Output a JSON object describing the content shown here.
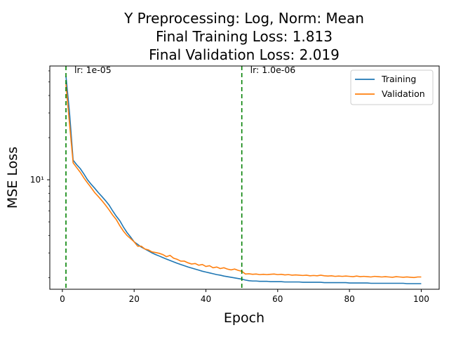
{
  "chart_data": {
    "type": "line",
    "title": [
      "Y Preprocessing: Log, Norm: Mean",
      "Final Training Loss: 1.813",
      "Final Validation Loss: 2.019"
    ],
    "xlabel": "Epoch",
    "ylabel": "MSE Loss",
    "yscale": "log",
    "xlim": [
      -3.5,
      105
    ],
    "ylim": [
      1.65,
      65
    ],
    "xticks": [
      0,
      20,
      40,
      60,
      80,
      100
    ],
    "xtick_labels": [
      "0",
      "20",
      "40",
      "60",
      "80",
      "100"
    ],
    "yticks_major": [
      10
    ],
    "ytick_labels": [
      "10¹"
    ],
    "grid": false,
    "legend": "top-right",
    "vlines": [
      {
        "x": 1,
        "color": "#008000",
        "style": "dashed",
        "label": "lr: 1e-05"
      },
      {
        "x": 50,
        "color": "#008000",
        "style": "dashed",
        "label": "lr: 1.0e-06"
      }
    ],
    "series": [
      {
        "name": "Training",
        "color": "#1f77b4",
        "x": [
          1,
          2,
          3,
          4,
          5,
          6,
          7,
          8,
          9,
          10,
          11,
          12,
          13,
          14,
          15,
          16,
          17,
          18,
          19,
          20,
          21,
          22,
          23,
          24,
          25,
          26,
          27,
          28,
          29,
          30,
          31,
          32,
          33,
          34,
          35,
          36,
          37,
          38,
          39,
          40,
          41,
          42,
          43,
          44,
          45,
          46,
          47,
          48,
          49,
          50,
          51,
          52,
          53,
          54,
          55,
          56,
          57,
          58,
          59,
          60,
          61,
          62,
          63,
          64,
          65,
          66,
          67,
          68,
          69,
          70,
          71,
          72,
          73,
          74,
          75,
          76,
          77,
          78,
          79,
          80,
          81,
          82,
          83,
          84,
          85,
          86,
          87,
          88,
          89,
          90,
          91,
          92,
          93,
          94,
          95,
          96,
          97,
          98,
          99,
          100
        ],
        "y": [
          55,
          30,
          13.8,
          12.8,
          12,
          11,
          10,
          9.3,
          8.7,
          8.1,
          7.6,
          7.1,
          6.6,
          6,
          5.5,
          5.1,
          4.6,
          4.2,
          3.9,
          3.6,
          3.45,
          3.3,
          3.2,
          3.1,
          3,
          2.92,
          2.85,
          2.78,
          2.71,
          2.65,
          2.59,
          2.53,
          2.48,
          2.43,
          2.38,
          2.34,
          2.3,
          2.26,
          2.22,
          2.19,
          2.16,
          2.13,
          2.1,
          2.08,
          2.05,
          2.03,
          2.01,
          1.99,
          1.97,
          1.95,
          1.92,
          1.9,
          1.89,
          1.89,
          1.88,
          1.88,
          1.88,
          1.87,
          1.87,
          1.87,
          1.87,
          1.86,
          1.86,
          1.86,
          1.86,
          1.86,
          1.85,
          1.85,
          1.85,
          1.85,
          1.85,
          1.85,
          1.84,
          1.84,
          1.84,
          1.84,
          1.84,
          1.84,
          1.84,
          1.83,
          1.83,
          1.83,
          1.83,
          1.83,
          1.83,
          1.82,
          1.82,
          1.82,
          1.82,
          1.82,
          1.82,
          1.82,
          1.82,
          1.82,
          1.82,
          1.81,
          1.81,
          1.81,
          1.81,
          1.81
        ]
      },
      {
        "name": "Validation",
        "color": "#ff7f0e",
        "x": [
          1,
          2,
          3,
          4,
          5,
          6,
          7,
          8,
          9,
          10,
          11,
          12,
          13,
          14,
          15,
          16,
          17,
          18,
          19,
          20,
          21,
          22,
          23,
          24,
          25,
          26,
          27,
          28,
          29,
          30,
          31,
          32,
          33,
          34,
          35,
          36,
          37,
          38,
          39,
          40,
          41,
          42,
          43,
          44,
          45,
          46,
          47,
          48,
          49,
          50,
          51,
          52,
          53,
          54,
          55,
          56,
          57,
          58,
          59,
          60,
          61,
          62,
          63,
          64,
          65,
          66,
          67,
          68,
          69,
          70,
          71,
          72,
          73,
          74,
          75,
          76,
          77,
          78,
          79,
          80,
          81,
          82,
          83,
          84,
          85,
          86,
          87,
          88,
          89,
          90,
          91,
          92,
          93,
          94,
          95,
          96,
          97,
          98,
          99,
          100
        ],
        "y": [
          48,
          25,
          13.2,
          12.2,
          11.3,
          10.3,
          9.5,
          8.8,
          8.1,
          7.6,
          7.1,
          6.6,
          6.1,
          5.6,
          5.2,
          4.7,
          4.3,
          4,
          3.8,
          3.6,
          3.35,
          3.35,
          3.2,
          3.15,
          3.05,
          3.02,
          2.98,
          2.92,
          2.82,
          2.88,
          2.75,
          2.7,
          2.62,
          2.62,
          2.55,
          2.5,
          2.52,
          2.45,
          2.48,
          2.4,
          2.43,
          2.35,
          2.38,
          2.32,
          2.35,
          2.3,
          2.27,
          2.3,
          2.25,
          2.22,
          2.12,
          2.13,
          2.11,
          2.12,
          2.1,
          2.11,
          2.1,
          2.11,
          2.12,
          2.1,
          2.11,
          2.09,
          2.1,
          2.08,
          2.09,
          2.08,
          2.07,
          2.08,
          2.06,
          2.07,
          2.06,
          2.08,
          2.06,
          2.05,
          2.06,
          2.04,
          2.05,
          2.04,
          2.05,
          2.04,
          2.03,
          2.05,
          2.03,
          2.04,
          2.03,
          2.02,
          2.04,
          2.03,
          2.02,
          2.03,
          2.02,
          2.01,
          2.03,
          2.02,
          2.01,
          2.02,
          2.01,
          2,
          2.02,
          2.02
        ]
      }
    ]
  }
}
